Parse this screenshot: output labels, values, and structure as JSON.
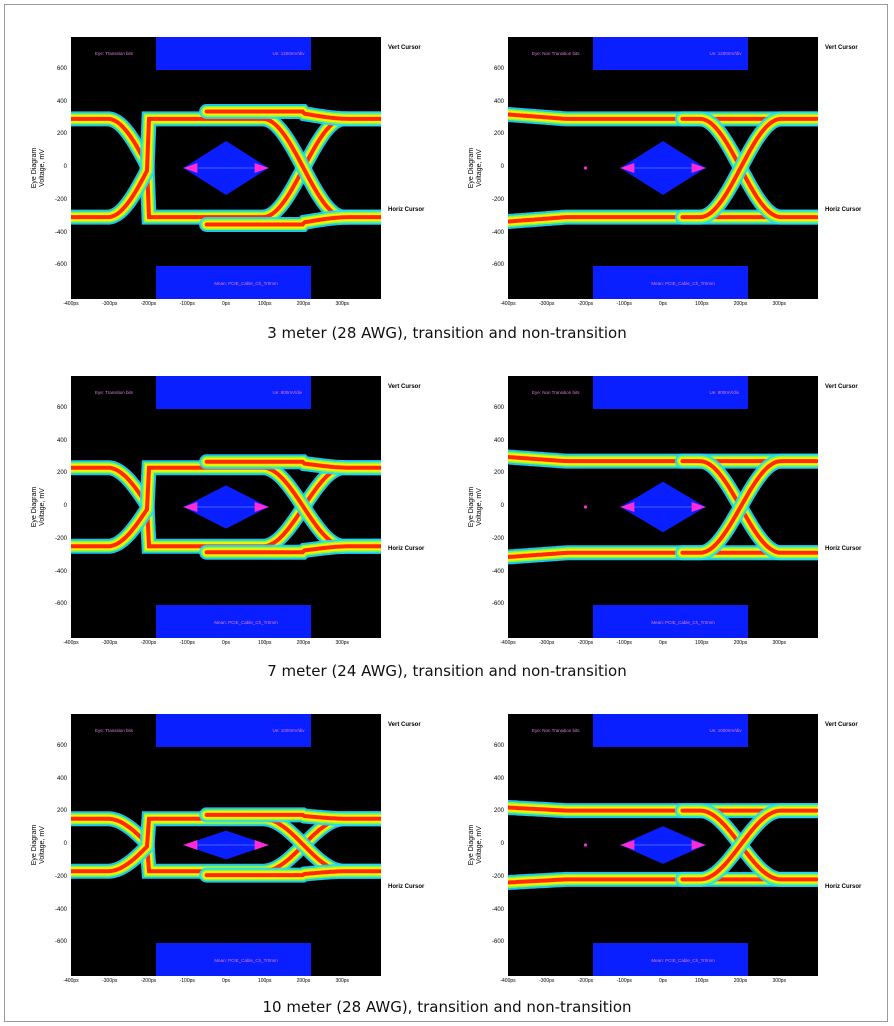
{
  "rows": [
    {
      "caption": "3 meter (28 AWG), transition and non-transition",
      "panels": [
        {
          "corner_label": "Eye: Transition bits",
          "top_box_label": "Ue: 1200mV/div",
          "bottom_box_label": "Mean: PCIE_Cable_Ch_Tr0mm"
        },
        {
          "corner_label": "Eye: Non Transition bits",
          "top_box_label": "Ue: 1200mV/div",
          "bottom_box_label": "Mean: PCIE_Cable_Ch_Tr0mm"
        }
      ]
    },
    {
      "caption": "7 meter (24 AWG), transition and non-transition",
      "panels": [
        {
          "corner_label": "Eye: Transition bits",
          "top_box_label": "Ue: 800mV/div",
          "bottom_box_label": "Mean: PCIE_Cable_Ch_Tr0mm"
        },
        {
          "corner_label": "Eye: Non Transition bits",
          "top_box_label": "Ue: 800mV/div",
          "bottom_box_label": "Mean: PCIE_Cable_Ch_Tr0mm"
        }
      ]
    },
    {
      "caption": "10 meter (28 AWG), transition and non-transition",
      "panels": [
        {
          "corner_label": "Eye: Transition bits",
          "top_box_label": "Ue: 1000mV/div",
          "bottom_box_label": "Mean: PCIE_Cable_Ch_Tr0mm"
        },
        {
          "corner_label": "Eye: Non Transition bits",
          "top_box_label": "Ue: 1000mV/div",
          "bottom_box_label": "Mean: PCIE_Cable_Ch_Tr0mm"
        }
      ]
    }
  ],
  "labels": {
    "ylabel": "Eye Diagram\nVoltage, mV",
    "vert_cursor": "Vert Cursor",
    "horiz_cursor": "Horiz Cursor"
  },
  "colors": {
    "plot_bg": "#000000",
    "mask_blue": "#0a1fff",
    "mask_marker": "#ff2bd6",
    "eye_hot": "#ff2a00",
    "eye_mid": "#ffee00",
    "eye_cool": "#22d9ff"
  },
  "chart_data": [
    {
      "type": "scatter",
      "title": "3 meter (28 AWG), transition",
      "xlabel": "",
      "ylabel": "Eye Diagram Voltage, mV",
      "x_ticks": [
        "-400ps",
        "-300ps",
        "-200ps",
        "-100ps",
        "0ps",
        "100ps",
        "200ps",
        "300ps"
      ],
      "y_ticks": [
        "600",
        "400",
        "200",
        "0",
        "-200",
        "-400",
        "-600"
      ],
      "ylim": [
        -800,
        800
      ],
      "xlim": [
        -400,
        400
      ],
      "eye_amplitude_mv": 300,
      "crossings_ps": [
        -200,
        200
      ]
    },
    {
      "type": "scatter",
      "title": "3 meter (28 AWG), non-transition",
      "xlabel": "",
      "ylabel": "Eye Diagram Voltage, mV",
      "x_ticks": [
        "-400ps",
        "-300ps",
        "-200ps",
        "-100ps",
        "0ps",
        "100ps",
        "200ps",
        "300ps"
      ],
      "y_ticks": [
        "600",
        "400",
        "200",
        "0",
        "-200",
        "-400",
        "-600"
      ],
      "ylim": [
        -800,
        800
      ],
      "xlim": [
        -400,
        400
      ],
      "eye_amplitude_mv": 300,
      "crossings_ps": [
        200
      ]
    },
    {
      "type": "scatter",
      "title": "7 meter (24 AWG), transition",
      "xlabel": "",
      "ylabel": "Eye Diagram Voltage, mV",
      "x_ticks": [
        "-400ps",
        "-300ps",
        "-200ps",
        "-100ps",
        "0ps",
        "100ps",
        "200ps",
        "300ps"
      ],
      "y_ticks": [
        "600",
        "400",
        "200",
        "0",
        "-200",
        "-400",
        "-600"
      ],
      "ylim": [
        -800,
        800
      ],
      "xlim": [
        -400,
        400
      ],
      "eye_amplitude_mv": 240,
      "crossings_ps": [
        -200,
        200
      ]
    },
    {
      "type": "scatter",
      "title": "7 meter (24 AWG), non-transition",
      "xlabel": "",
      "ylabel": "Eye Diagram Voltage, mV",
      "x_ticks": [
        "-400ps",
        "-300ps",
        "-200ps",
        "-100ps",
        "0ps",
        "100ps",
        "200ps",
        "300ps"
      ],
      "y_ticks": [
        "600",
        "400",
        "200",
        "0",
        "-200",
        "-400",
        "-600"
      ],
      "ylim": [
        -800,
        800
      ],
      "xlim": [
        -400,
        400
      ],
      "eye_amplitude_mv": 280,
      "crossings_ps": [
        200
      ]
    },
    {
      "type": "scatter",
      "title": "10 meter (28 AWG), transition",
      "xlabel": "",
      "ylabel": "Eye Diagram Voltage, mV",
      "x_ticks": [
        "-400ps",
        "-300ps",
        "-200ps",
        "-100ps",
        "0ps",
        "100ps",
        "200ps",
        "300ps"
      ],
      "y_ticks": [
        "600",
        "400",
        "200",
        "0",
        "-200",
        "-400",
        "-600"
      ],
      "ylim": [
        -800,
        800
      ],
      "xlim": [
        -400,
        400
      ],
      "eye_amplitude_mv": 160,
      "crossings_ps": [
        -200,
        200
      ]
    },
    {
      "type": "scatter",
      "title": "10 meter (28 AWG), non-transition",
      "xlabel": "",
      "ylabel": "Eye Diagram Voltage, mV",
      "x_ticks": [
        "-400ps",
        "-300ps",
        "-200ps",
        "-100ps",
        "0ps",
        "100ps",
        "200ps",
        "300ps"
      ],
      "y_ticks": [
        "600",
        "400",
        "200",
        "0",
        "-200",
        "-400",
        "-600"
      ],
      "ylim": [
        -800,
        800
      ],
      "xlim": [
        -400,
        400
      ],
      "eye_amplitude_mv": 210,
      "crossings_ps": [
        200
      ]
    }
  ]
}
